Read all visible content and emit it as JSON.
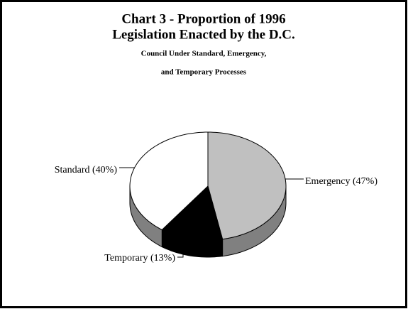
{
  "chart_data": {
    "type": "pie3d",
    "title": [
      "Chart 3 - Proportion of 1996",
      "Legislation Enacted by the D.C."
    ],
    "subtitle": [
      "Council Under Standard, Emergency,",
      "and Temporary Processes"
    ],
    "values": [
      47,
      13,
      40
    ],
    "value_labels": [
      "Emergency (47%)",
      "Temporary (13%)",
      "Standard (40%)"
    ],
    "colors": [
      "#c0c0c0",
      "#000000",
      "#ffffff"
    ],
    "side_colors": [
      "#808080",
      "#000000",
      "#808080"
    ]
  }
}
